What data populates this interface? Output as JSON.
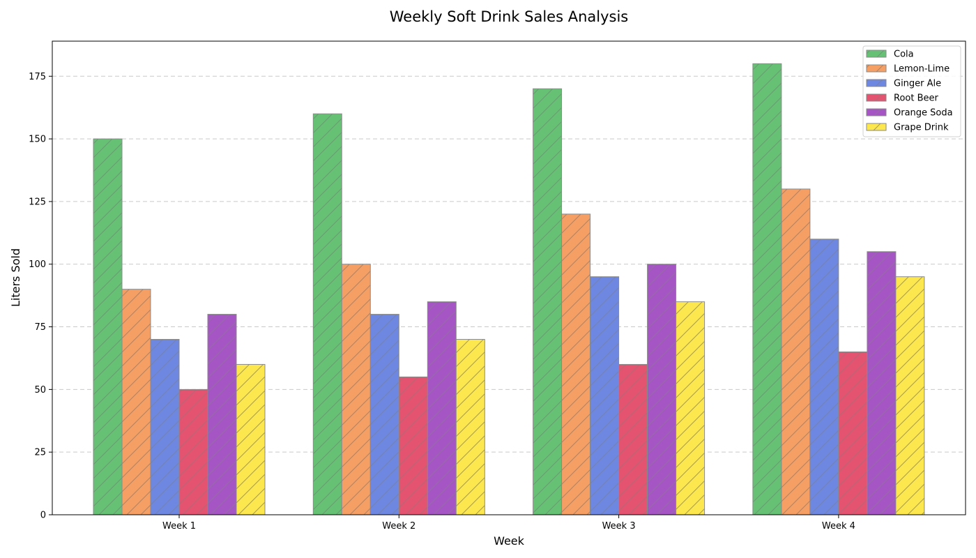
{
  "chart_data": {
    "type": "bar",
    "title": "Weekly Soft Drink Sales Analysis",
    "xlabel": "Week",
    "ylabel": "Liters Sold",
    "categories": [
      "Week 1",
      "Week 2",
      "Week 3",
      "Week 4"
    ],
    "ylim": [
      0,
      189
    ],
    "yticks": [
      0,
      25,
      50,
      75,
      100,
      125,
      150,
      175
    ],
    "grid": "y dashed",
    "legend_position": "top-right",
    "hatch": "diagonal",
    "series": [
      {
        "name": "Cola",
        "color": "#66c175",
        "values": [
          150,
          160,
          170,
          180
        ]
      },
      {
        "name": "Lemon-Lime",
        "color": "#f59f64",
        "values": [
          90,
          100,
          120,
          130
        ]
      },
      {
        "name": "Ginger Ale",
        "color": "#6e87e0",
        "values": [
          70,
          80,
          95,
          110
        ]
      },
      {
        "name": "Root Beer",
        "color": "#e4536f",
        "values": [
          50,
          55,
          60,
          65
        ]
      },
      {
        "name": "Orange Soda",
        "color": "#a656c4",
        "values": [
          80,
          85,
          100,
          105
        ]
      },
      {
        "name": "Grape Drink",
        "color": "#fde74f",
        "values": [
          60,
          70,
          85,
          95
        ]
      }
    ]
  }
}
